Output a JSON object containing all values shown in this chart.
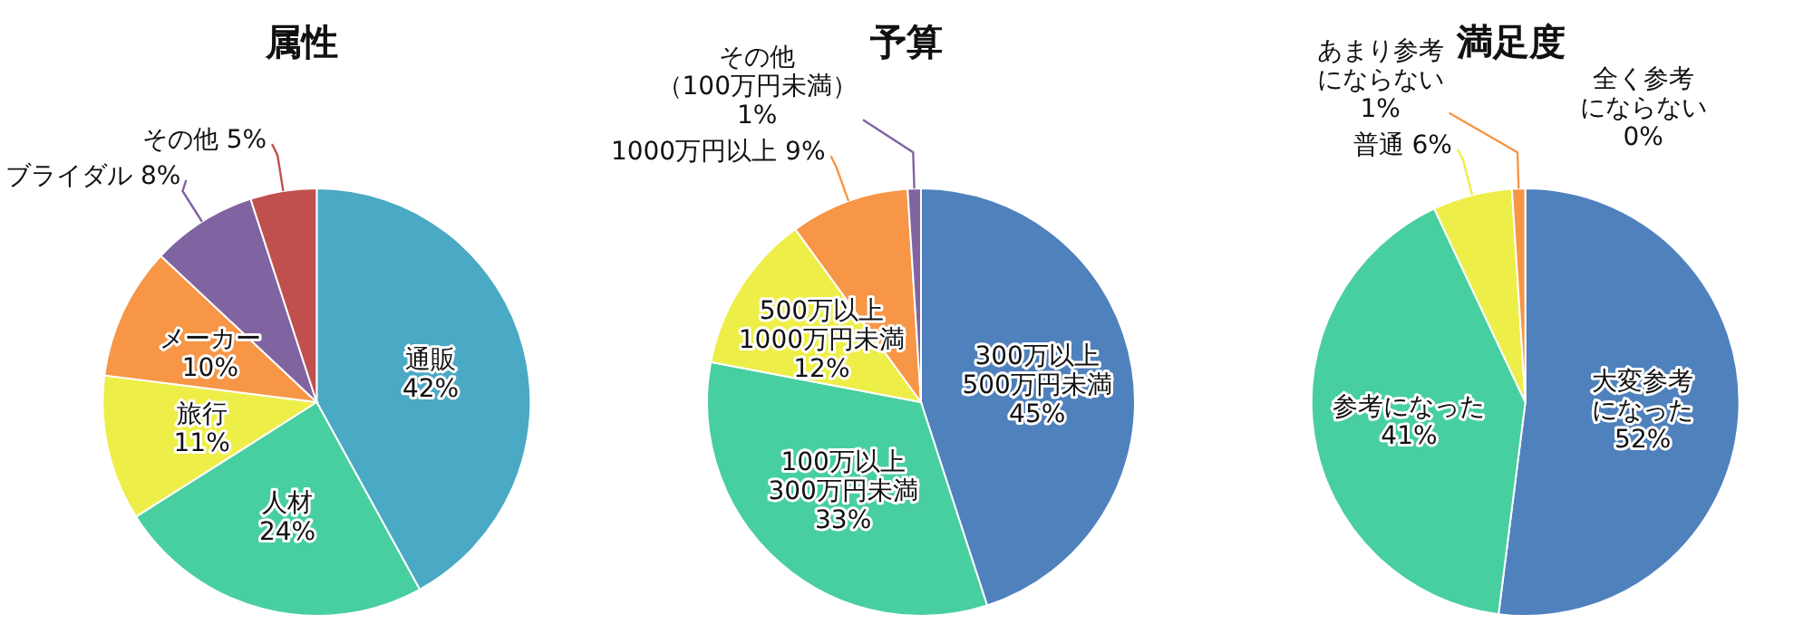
{
  "chart_data": [
    {
      "type": "pie",
      "title": "属性",
      "categories": [
        "通販",
        "人材",
        "旅行",
        "メーカー",
        "ブライダル",
        "その他"
      ],
      "values": [
        42,
        24,
        11,
        10,
        8,
        5
      ],
      "value_labels": [
        "42%",
        "24%",
        "11%",
        "10%",
        "8%",
        "5%"
      ],
      "colors": [
        "#4aa9c4",
        "#48cfa0",
        "#eeee48",
        "#f79646",
        "#8064a2",
        "#c0504d"
      ]
    },
    {
      "type": "pie",
      "title": "予算",
      "categories": [
        "300万以上500万円未満",
        "100万以上300万円未満",
        "500万以上1000万円未満",
        "1000万円以上",
        "その他（100万円未満）"
      ],
      "values": [
        45,
        33,
        12,
        9,
        1
      ],
      "value_labels": [
        "45%",
        "33%",
        "12%",
        "9%",
        "1%"
      ],
      "colors": [
        "#4f81bd",
        "#48cfa0",
        "#eeee48",
        "#f79646",
        "#8064a2"
      ]
    },
    {
      "type": "pie",
      "title": "満足度",
      "categories": [
        "大変参考になった",
        "参考になった",
        "普通",
        "あまり参考にならない",
        "全く参考にならない"
      ],
      "values": [
        52,
        41,
        6,
        1,
        0
      ],
      "value_labels": [
        "52%",
        "41%",
        "6%",
        "1%",
        "0%"
      ],
      "colors": [
        "#4f81bd",
        "#48cfa0",
        "#eeee48",
        "#f79646",
        "#c0504d"
      ]
    }
  ]
}
